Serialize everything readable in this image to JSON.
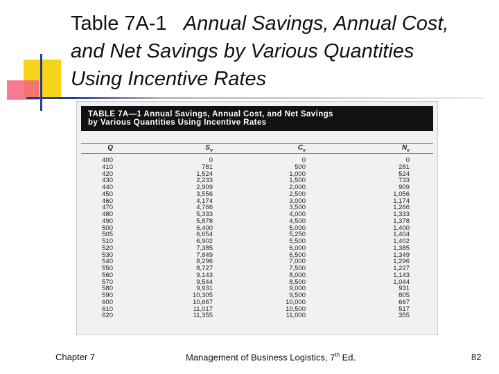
{
  "title": {
    "label": "Table 7A-1",
    "lines": [
      "Annual Savings, Annual Cost,",
      "and Net Savings by Various Quantities",
      "Using Incentive Rates"
    ]
  },
  "table": {
    "caption": [
      "TABLE 7A—1 Annual Savings, Annual Cost, and Net Savings",
      "by Various Quantities Using Incentive Rates"
    ],
    "headers": [
      {
        "main": "Q"
      },
      {
        "main": "S",
        "sub": "v"
      },
      {
        "main": "C",
        "sub": "v"
      },
      {
        "main": "N",
        "sub": "v"
      }
    ],
    "rows": [
      [
        "400",
        "0",
        "0",
        "0"
      ],
      [
        "410",
        "781",
        "500",
        "281"
      ],
      [
        "420",
        "1,524",
        "1,000",
        "524"
      ],
      [
        "430",
        "2,233",
        "1,500",
        "733"
      ],
      [
        "440",
        "2,909",
        "2,000",
        "909"
      ],
      [
        "450",
        "3,556",
        "2,500",
        "1,056"
      ],
      [
        "460",
        "4,174",
        "3,000",
        "1,174"
      ],
      [
        "470",
        "4,766",
        "3,500",
        "1,266"
      ],
      [
        "480",
        "5,333",
        "4,000",
        "1,333"
      ],
      [
        "490",
        "5,878",
        "4,500",
        "1,378"
      ],
      [
        "500",
        "6,400",
        "5,000",
        "1,400"
      ],
      [
        "505",
        "6,654",
        "5,250",
        "1,404"
      ],
      [
        "510",
        "6,902",
        "5,500",
        "1,402"
      ],
      [
        "520",
        "7,385",
        "6,000",
        "1,385"
      ],
      [
        "530",
        "7,849",
        "6,500",
        "1,349"
      ],
      [
        "540",
        "8,296",
        "7,000",
        "1,296"
      ],
      [
        "550",
        "8,727",
        "7,500",
        "1,227"
      ],
      [
        "560",
        "9,143",
        "8,000",
        "1,143"
      ],
      [
        "570",
        "9,544",
        "8,500",
        "1,044"
      ],
      [
        "580",
        "9,931",
        "9,000",
        "931"
      ],
      [
        "590",
        "10,305",
        "9,500",
        "805"
      ],
      [
        "600",
        "10,667",
        "10,000",
        "667"
      ],
      [
        "610",
        "11,017",
        "10,500",
        "517"
      ],
      [
        "620",
        "11,355",
        "11,000",
        "355"
      ]
    ]
  },
  "footer": {
    "left": "Chapter 7",
    "center": {
      "text": "Management of Business Logistics, 7",
      "sup": "th",
      "after": " Ed."
    },
    "right": "82"
  }
}
